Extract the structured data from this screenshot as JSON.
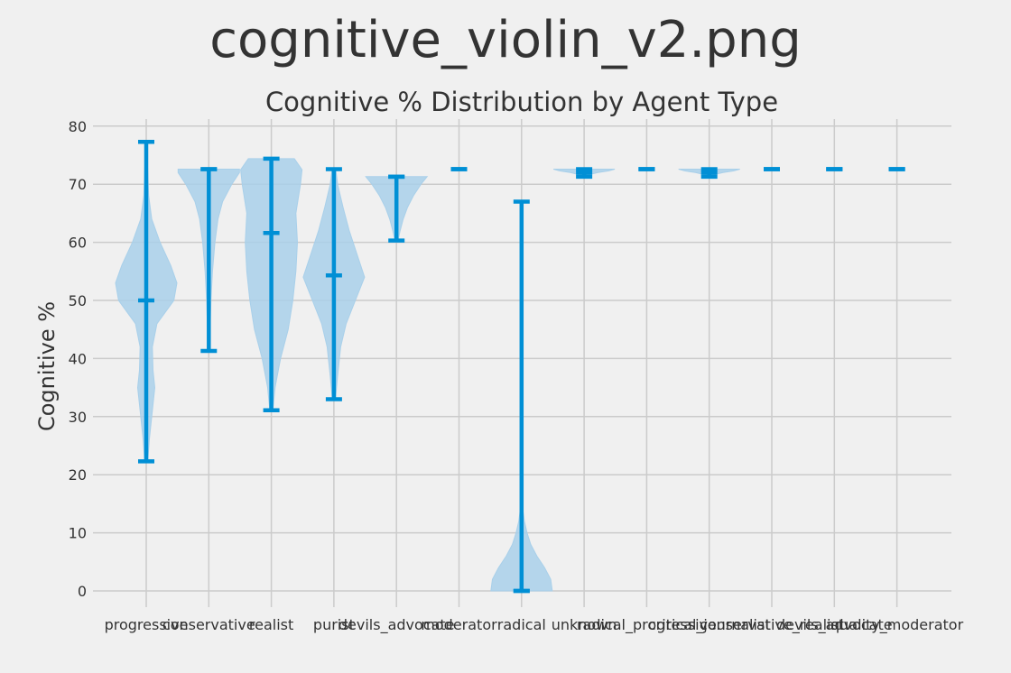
{
  "figure": {
    "title": "cognitive_violin_v2.png"
  },
  "chart_data": {
    "type": "violin",
    "title": "Cognitive % Distribution by Agent Type",
    "xlabel": "",
    "ylabel": "Cognitive %",
    "ylim": [
      -3,
      81
    ],
    "yticks": [
      0,
      10,
      20,
      30,
      40,
      50,
      60,
      70,
      80
    ],
    "grid": true,
    "colors": {
      "body": "#a9d0ea",
      "lines": "#008fd5",
      "grid": "#cbcbcb",
      "background": "#f0f0f0"
    },
    "categories": [
      "progressive",
      "conservative",
      "realist",
      "purist",
      "devils_advocate",
      "moderator",
      "radical",
      "unknown",
      "radical_progressive",
      "critical_journalist",
      "conservative_realist",
      "devils_advocate",
      "quality_moderator"
    ],
    "series": [
      {
        "min": 22.3,
        "max": 77.3,
        "median": 50.0,
        "profile": [
          [
            22.3,
            0.05
          ],
          [
            26,
            0.1
          ],
          [
            30,
            0.18
          ],
          [
            35,
            0.28
          ],
          [
            38,
            0.22
          ],
          [
            42,
            0.2
          ],
          [
            46,
            0.35
          ],
          [
            50,
            0.9
          ],
          [
            53,
            1.0
          ],
          [
            56,
            0.8
          ],
          [
            60,
            0.45
          ],
          [
            64,
            0.18
          ],
          [
            68,
            0.08
          ],
          [
            72,
            0.05
          ],
          [
            77.3,
            0.02
          ]
        ]
      },
      {
        "min": 41.3,
        "max": 72.6,
        "median": 72.6,
        "profile": [
          [
            41.3,
            0.02
          ],
          [
            45,
            0.04
          ],
          [
            50,
            0.07
          ],
          [
            55,
            0.12
          ],
          [
            60,
            0.2
          ],
          [
            64,
            0.3
          ],
          [
            67,
            0.45
          ],
          [
            70,
            0.75
          ],
          [
            72,
            1.0
          ],
          [
            72.6,
            1.0
          ]
        ]
      },
      {
        "min": 31.1,
        "max": 74.4,
        "median": 61.6,
        "profile": [
          [
            31.1,
            0.05
          ],
          [
            35,
            0.12
          ],
          [
            40,
            0.3
          ],
          [
            45,
            0.55
          ],
          [
            50,
            0.7
          ],
          [
            55,
            0.8
          ],
          [
            60,
            0.85
          ],
          [
            65,
            0.8
          ],
          [
            70,
            0.95
          ],
          [
            72.5,
            1.0
          ],
          [
            74.4,
            0.75
          ]
        ]
      },
      {
        "min": 33.0,
        "max": 72.6,
        "median": 54.3,
        "profile": [
          [
            33,
            0.05
          ],
          [
            37,
            0.12
          ],
          [
            42,
            0.22
          ],
          [
            46,
            0.4
          ],
          [
            50,
            0.7
          ],
          [
            54,
            1.0
          ],
          [
            58,
            0.75
          ],
          [
            62,
            0.5
          ],
          [
            66,
            0.3
          ],
          [
            70,
            0.12
          ],
          [
            72.6,
            0.06
          ]
        ]
      },
      {
        "min": 60.3,
        "max": 71.3,
        "median": 71.3,
        "profile": [
          [
            60.3,
            0.05
          ],
          [
            62,
            0.12
          ],
          [
            64,
            0.22
          ],
          [
            66,
            0.36
          ],
          [
            68,
            0.55
          ],
          [
            70,
            0.8
          ],
          [
            71.3,
            1.0
          ]
        ]
      },
      {
        "min": 72.6,
        "max": 72.6,
        "median": 72.6,
        "profile": []
      },
      {
        "min": 0.0,
        "max": 67.0,
        "median": 0.0,
        "profile": [
          [
            0,
            1.0
          ],
          [
            2,
            0.95
          ],
          [
            4,
            0.75
          ],
          [
            6,
            0.5
          ],
          [
            8,
            0.3
          ],
          [
            10,
            0.18
          ],
          [
            12,
            0.09
          ],
          [
            14,
            0.04
          ],
          [
            18,
            0.015
          ],
          [
            30,
            0.005
          ],
          [
            67,
            0.003
          ]
        ]
      },
      {
        "min": 71.3,
        "max": 72.6,
        "median": 72.0,
        "profile": [
          [
            71.3,
            0.05
          ],
          [
            71.7,
            0.2
          ],
          [
            72.0,
            0.45
          ],
          [
            72.3,
            0.8
          ],
          [
            72.6,
            1.0
          ]
        ]
      },
      {
        "min": 72.6,
        "max": 72.6,
        "median": 72.6,
        "profile": []
      },
      {
        "min": 71.3,
        "max": 72.6,
        "median": 72.0,
        "profile": [
          [
            71.3,
            0.05
          ],
          [
            71.7,
            0.2
          ],
          [
            72.0,
            0.45
          ],
          [
            72.3,
            0.8
          ],
          [
            72.6,
            1.0
          ]
        ]
      },
      {
        "min": 72.6,
        "max": 72.6,
        "median": 72.6,
        "profile": []
      },
      {
        "min": 72.6,
        "max": 72.6,
        "median": 72.6,
        "profile": []
      },
      {
        "min": 72.6,
        "max": 72.6,
        "median": 72.6,
        "profile": []
      }
    ]
  }
}
